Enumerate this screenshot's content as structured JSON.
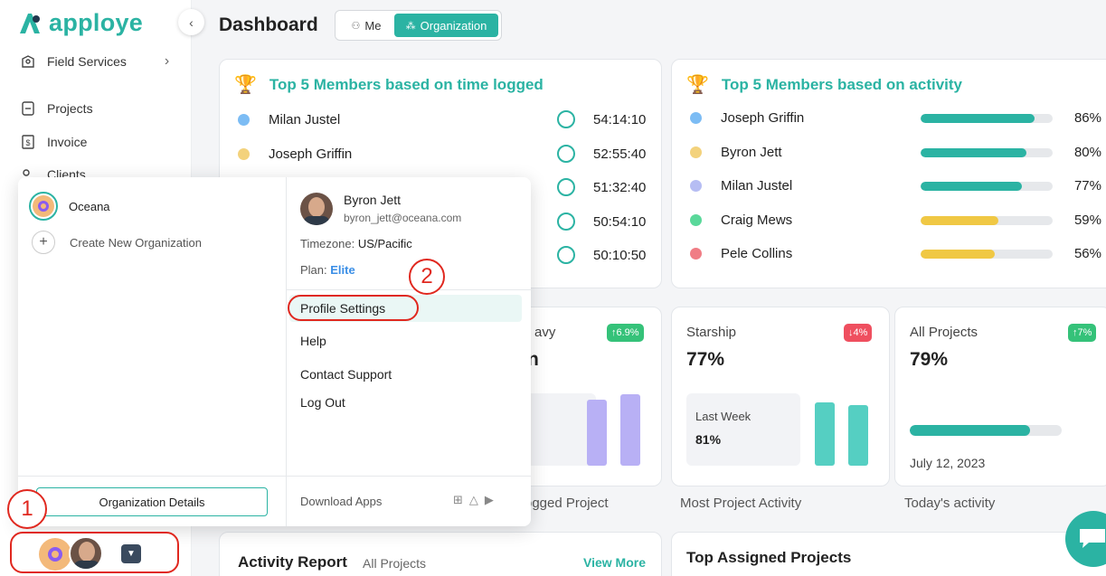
{
  "app": {
    "name": "apploye"
  },
  "colors": {
    "accent": "#2bb3a3",
    "blue": "#7cbcf4",
    "yellow": "#f3d27c",
    "lavender": "#b6bdf3",
    "green": "#5ad89a",
    "red": "#f07d85",
    "bar_green": "#2bb3a3",
    "bar_yellow": "#f0c844",
    "badge_green": "#35c279",
    "badge_red": "#ef4f5f",
    "annotation_red": "#e0281f"
  },
  "sidebar": {
    "items": [
      {
        "label": "Field Services",
        "icon": "field-services-icon"
      },
      {
        "label": "Projects",
        "icon": "projects-icon"
      },
      {
        "label": "Invoice",
        "icon": "invoice-icon"
      },
      {
        "label": "Clients",
        "icon": "clients-icon"
      }
    ]
  },
  "header": {
    "title": "Dashboard",
    "toggle_me": "Me",
    "toggle_org": "Organization"
  },
  "time_card": {
    "title": "Top 5 Members based on time logged",
    "rows": [
      {
        "name": "Milan Justel",
        "time": "54:14:10"
      },
      {
        "name": "Joseph Griffin",
        "time": "52:55:40"
      },
      {
        "name": "",
        "time": "51:32:40"
      },
      {
        "name": "",
        "time": "50:54:10"
      },
      {
        "name": "",
        "time": "50:10:50"
      }
    ]
  },
  "activity_card": {
    "title": "Top 5 Members based on activity",
    "rows": [
      {
        "name": "Joseph Griffin",
        "percent": "86%",
        "value": 0.86
      },
      {
        "name": "Byron Jett",
        "percent": "80%",
        "value": 0.8
      },
      {
        "name": "Milan Justel",
        "percent": "77%",
        "value": 0.77
      },
      {
        "name": "Craig Mews",
        "percent": "59%",
        "value": 0.59
      },
      {
        "name": "Pele Collins",
        "percent": "56%",
        "value": 0.56
      }
    ]
  },
  "stats": {
    "first": {
      "label_partial": "avy",
      "value_partial": "n",
      "badge": "↑6.9%",
      "footer_partial": "ogged Project"
    },
    "starship": {
      "label": "Starship",
      "value": "77%",
      "badge": "↓4%",
      "last_week_label": "Last Week",
      "last_week_value": "81%",
      "footer": "Most Project Activity"
    },
    "all_projects": {
      "label": "All Projects",
      "value": "79%",
      "badge": "↑7%",
      "progress": 0.79,
      "date": "July 12, 2023",
      "footer": "Today's activity"
    }
  },
  "bottom": {
    "activity_report": {
      "title": "Activity Report",
      "subtitle": "All Projects",
      "link": "View More"
    },
    "top_assigned": {
      "title": "Top Assigned Projects"
    }
  },
  "popup": {
    "orgs": [
      {
        "name": "Oceana"
      }
    ],
    "create_org": "Create New Organization",
    "org_details_button": "Organization Details",
    "user": {
      "name": "Byron Jett",
      "email": "byron_jett@oceana.com",
      "timezone_label": "Timezone:",
      "timezone": "US/Pacific",
      "plan_label": "Plan:",
      "plan": "Elite"
    },
    "menu": [
      "Profile Settings",
      "Help",
      "Contact Support",
      "Log Out"
    ],
    "download_label": "Download Apps"
  },
  "annotations": {
    "step1": "1",
    "step2": "2"
  }
}
